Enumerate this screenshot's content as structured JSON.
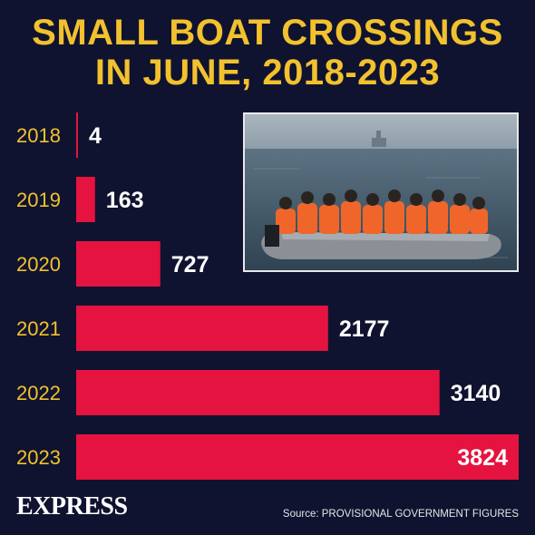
{
  "title_lines": [
    "SMALL BOAT CROSSINGS",
    "IN JUNE, 2018-2023"
  ],
  "brand": "EXPRESS",
  "source": "Source: PROVISIONAL GOVERNMENT FIGURES",
  "colors": {
    "background": "#0f1330",
    "title": "#f2c12e",
    "year_labels": "#f2c12e",
    "bars": "#e5133f",
    "value_labels": "#ffffff"
  },
  "chart_data": {
    "type": "bar",
    "orientation": "horizontal",
    "title": "SMALL BOAT CROSSINGS IN JUNE, 2018-2023",
    "categories": [
      "2018",
      "2019",
      "2020",
      "2021",
      "2022",
      "2023"
    ],
    "values": [
      4,
      163,
      727,
      2177,
      3140,
      3824
    ],
    "data_labels": [
      "4",
      "163",
      "727",
      "2177",
      "3140",
      "3824"
    ],
    "xlim": [
      0,
      3824
    ],
    "grid": false,
    "legend": "none"
  }
}
